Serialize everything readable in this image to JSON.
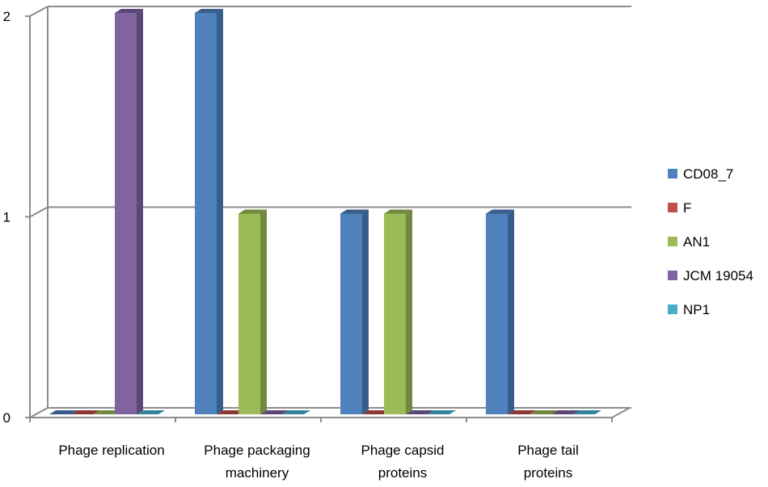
{
  "chart_data": {
    "type": "bar",
    "style": "3d-clustered-column",
    "categories": [
      [
        "Phage replication"
      ],
      [
        "Phage packaging",
        "machinery"
      ],
      [
        "Phage capsid",
        "proteins"
      ],
      [
        "Phage tail",
        "proteins"
      ]
    ],
    "series": [
      {
        "name": "CD08_7",
        "color": "#4F81BD",
        "side": "#385D8A",
        "values": [
          0,
          2,
          1,
          1
        ]
      },
      {
        "name": "F",
        "color": "#C0504D",
        "side": "#8C3836",
        "values": [
          0,
          0,
          0,
          0
        ]
      },
      {
        "name": "AN1",
        "color": "#9BBB59",
        "side": "#71893F",
        "values": [
          0,
          1,
          1,
          0
        ]
      },
      {
        "name": "JCM 19054",
        "color": "#8064A2",
        "side": "#5C4776",
        "values": [
          2,
          0,
          0,
          0
        ]
      },
      {
        "name": "NP1",
        "color": "#4BACC6",
        "side": "#31849B",
        "values": [
          0,
          0,
          0,
          0
        ]
      }
    ],
    "ylim": [
      0,
      2
    ],
    "yticks": [
      "0",
      "1",
      "2"
    ],
    "gridlines": true,
    "legend_position": "right",
    "title": "",
    "xlabel": "",
    "ylabel": ""
  }
}
